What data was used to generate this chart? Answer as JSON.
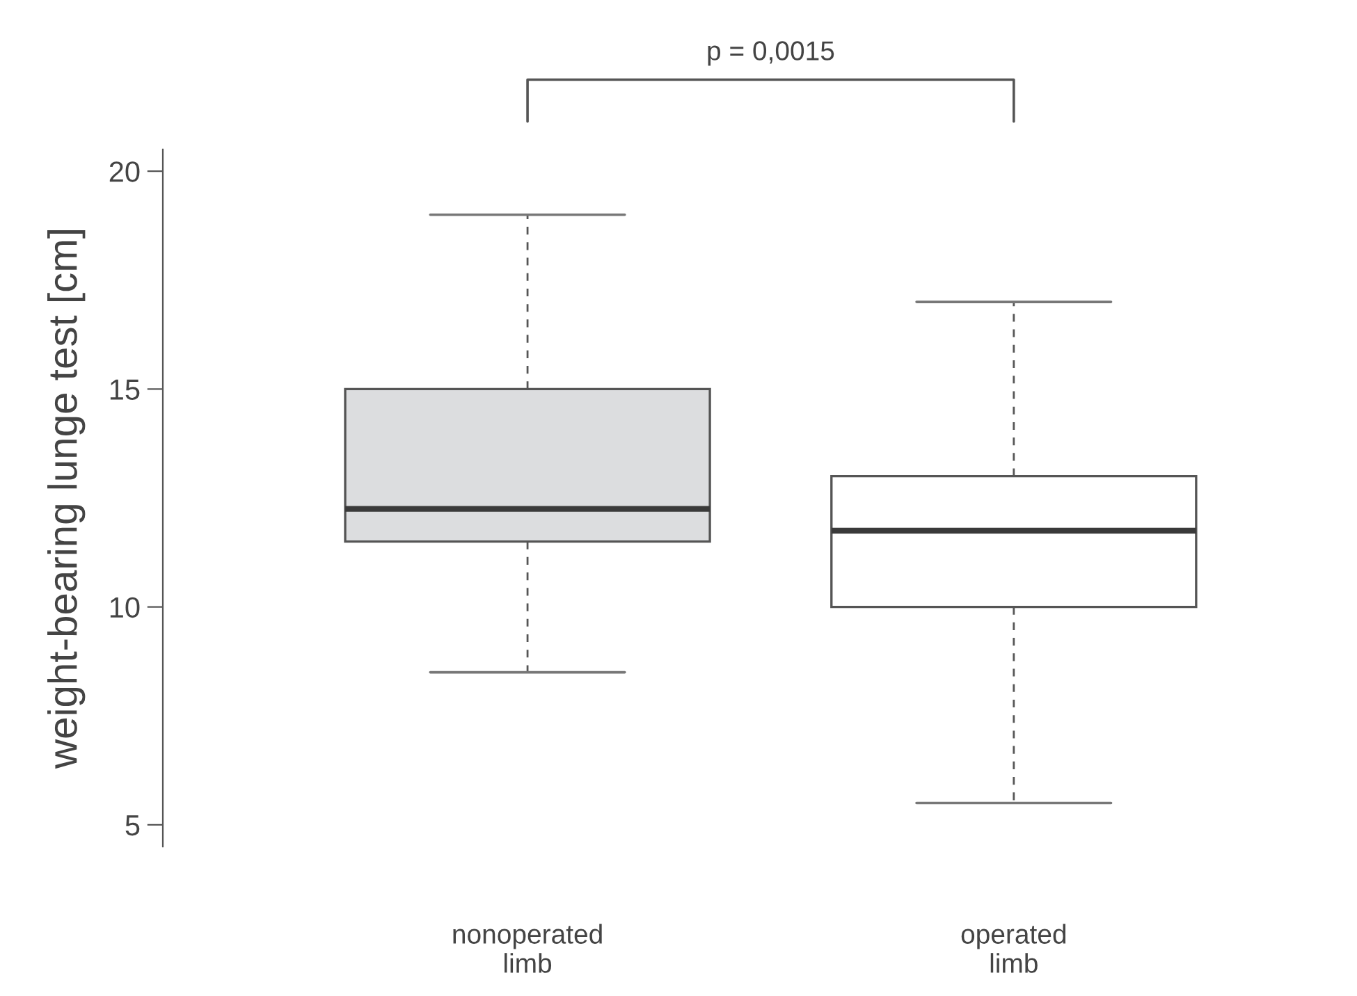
{
  "chart_data": {
    "type": "box",
    "ylabel": "weight-bearing lunge test [cm]",
    "categories": [
      "nonoperated\nlimb",
      "operated\nlimb"
    ],
    "colors": [
      "#dcdddf",
      "#ffffff"
    ],
    "boxes": [
      {
        "low": 8.5,
        "q1": 11.5,
        "median": 12.25,
        "q3": 15,
        "high": 19
      },
      {
        "low": 5.5,
        "q1": 10,
        "median": 11.75,
        "q3": 13,
        "high": 17
      }
    ],
    "ylim": [
      4.5,
      20.5
    ],
    "yticks": [
      5,
      10,
      15,
      20
    ],
    "annotations": [
      "p = 0,0015"
    ],
    "grid": false,
    "legend": false
  }
}
